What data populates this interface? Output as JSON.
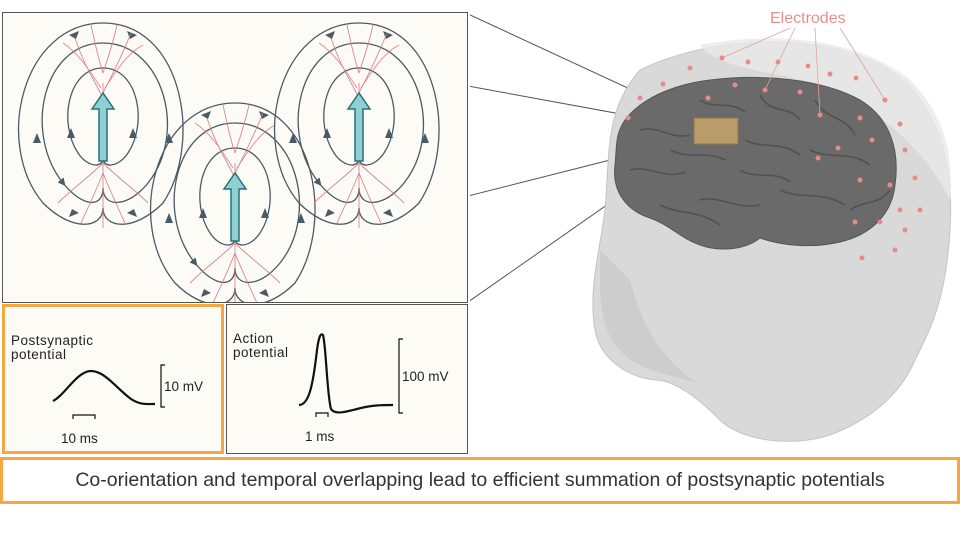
{
  "labels": {
    "electrodes": "Electrodes",
    "postsynaptic": "Postsynaptic\npotential",
    "psp_amplitude": "10 mV",
    "psp_time": "10 ms",
    "action": "Action\npotential",
    "ap_amplitude": "100 mV",
    "ap_time": "1 ms"
  },
  "caption": "Co-orientation and temporal overlapping lead to efficient summation of postsynaptic potentials",
  "colors": {
    "accent": "#f5a742",
    "electrode": "#e8908a",
    "brain": "#666666",
    "head": "#d8d8d8",
    "neuron": "#d6788a",
    "dipole_arrow": "#8fd0d4",
    "field_line": "#4a5a66"
  }
}
